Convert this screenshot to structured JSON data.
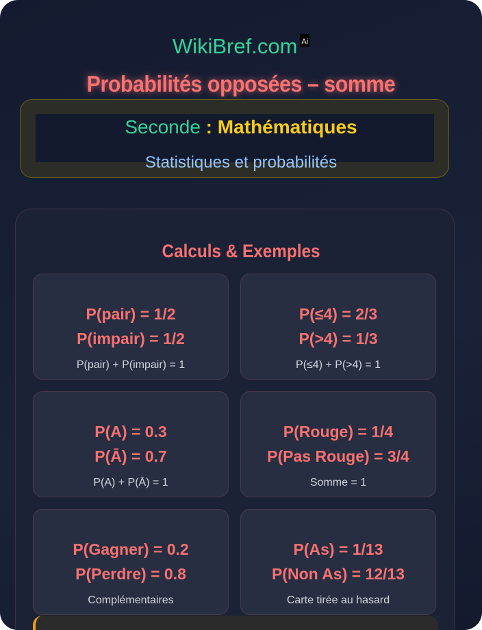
{
  "brand": {
    "name": "WikiBref.com",
    "badge": "Ai"
  },
  "title": "Probabilités opposées – somme",
  "subtitle": {
    "level": "Seconde",
    "separator": " : ",
    "subject": "Mathématiques",
    "chapter": "Statistiques et probabilités"
  },
  "section": {
    "title": "Calculs & Exemples",
    "cards": [
      {
        "line1": "P(pair) = 1/2",
        "line2": "P(impair) = 1/2",
        "note": "P(pair) + P(impair) = 1"
      },
      {
        "line1": "P(≤4) = 2/3",
        "line2": "P(>4) = 1/3",
        "note": "P(≤4) + P(>4) = 1"
      },
      {
        "line1": "P(A) = 0.3",
        "line2": "P(Ā) = 0.7",
        "note": "P(A) + P(Ā) = 1"
      },
      {
        "line1": "P(Rouge) = 1/4",
        "line2": "P(Pas Rouge) = 3/4",
        "note": "Somme = 1"
      },
      {
        "line1": "P(Gagner) = 0.2",
        "line2": "P(Perdre) = 0.8",
        "note": "Complémentaires"
      },
      {
        "line1": "P(As) = 1/13",
        "line2": "P(Non As) = 12/13",
        "note": "Carte tirée au hasard"
      }
    ]
  }
}
